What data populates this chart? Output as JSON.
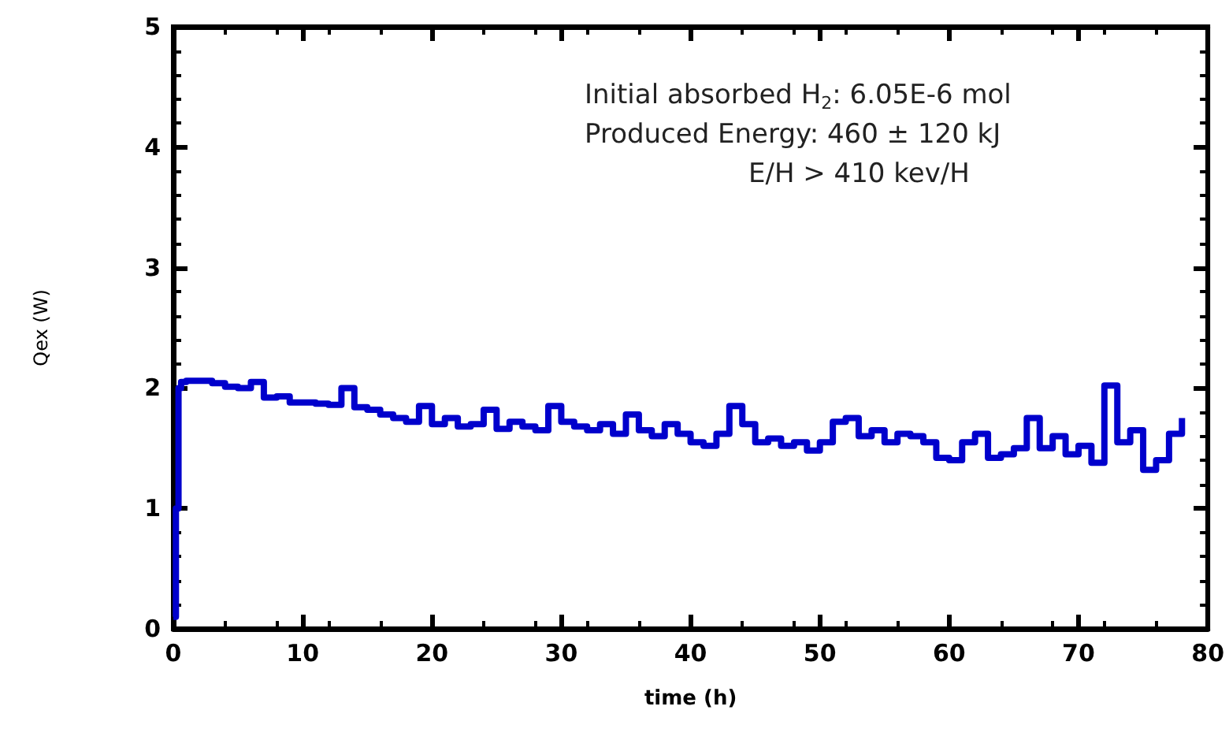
{
  "chart_data": {
    "type": "step",
    "xlabel": "time (h)",
    "ylabel": "Qex (W)",
    "annotations": [
      "Initial absorbed H$_{2}$: 6.05E-6 mol",
      "Produced Energy: 460 ± 120 kJ",
      "E/H > 410 kev/H"
    ],
    "x": [
      0,
      0.2,
      0.4,
      0.6,
      1,
      2,
      3,
      4,
      5,
      6,
      7,
      8,
      9,
      10,
      11,
      12,
      13,
      14,
      15,
      16,
      17,
      18,
      19,
      20,
      21,
      22,
      23,
      24,
      25,
      26,
      27,
      28,
      29,
      30,
      31,
      32,
      33,
      34,
      35,
      36,
      37,
      38,
      39,
      40,
      41,
      42,
      43,
      44,
      45,
      46,
      47,
      48,
      49,
      50,
      51,
      52,
      53,
      54,
      55,
      56,
      57,
      58,
      59,
      60,
      61,
      62,
      63,
      64,
      65,
      66,
      67,
      68,
      69,
      70,
      71,
      72,
      73,
      74,
      75,
      76,
      77,
      78
    ],
    "series": [
      {
        "color": "#0000cc",
        "values": [
          0.1,
          1.0,
          2.0,
          2.05,
          2.06,
          2.06,
          2.04,
          2.01,
          2.0,
          2.05,
          1.92,
          1.93,
          1.88,
          1.88,
          1.87,
          1.86,
          2.0,
          1.84,
          1.82,
          1.78,
          1.75,
          1.72,
          1.85,
          1.7,
          1.75,
          1.68,
          1.7,
          1.82,
          1.66,
          1.72,
          1.68,
          1.65,
          1.85,
          1.72,
          1.68,
          1.65,
          1.7,
          1.62,
          1.78,
          1.65,
          1.6,
          1.7,
          1.62,
          1.55,
          1.52,
          1.62,
          1.85,
          1.7,
          1.55,
          1.58,
          1.52,
          1.55,
          1.48,
          1.55,
          1.72,
          1.75,
          1.6,
          1.65,
          1.55,
          1.62,
          1.6,
          1.55,
          1.42,
          1.4,
          1.55,
          1.62,
          1.42,
          1.45,
          1.5,
          1.75,
          1.5,
          1.6,
          1.45,
          1.52,
          1.38,
          2.02,
          1.55,
          1.65,
          1.32,
          1.4,
          1.62,
          1.75
        ]
      }
    ],
    "xlim": [
      0,
      80
    ],
    "xticks": [
      0,
      10,
      20,
      30,
      40,
      50,
      60,
      70,
      80
    ],
    "ylim": [
      0,
      5
    ],
    "yticks": [
      0,
      1,
      2,
      3,
      4,
      5
    ],
    "grid": false,
    "marker": "none",
    "line_style": "solid"
  }
}
